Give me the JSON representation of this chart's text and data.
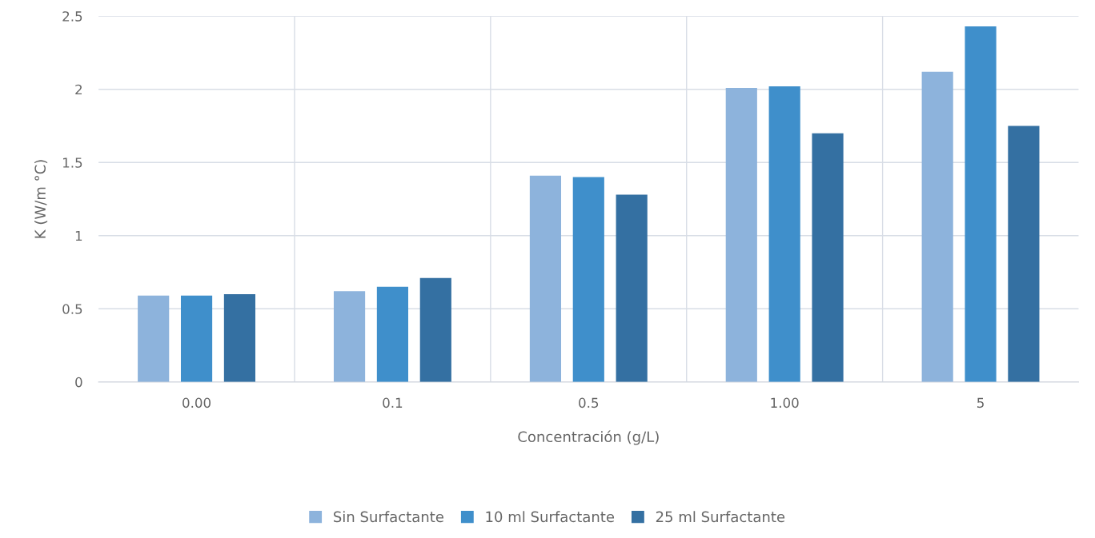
{
  "chart_data": {
    "type": "bar",
    "xlabel": "Concentración (g/L)",
    "ylabel": "K (W/m °C)",
    "categories": [
      "0.00",
      "0.1",
      "0.5",
      "1.00",
      "5"
    ],
    "series": [
      {
        "name": "Sin Surfactante",
        "color": "#8db3dc",
        "values": [
          0.59,
          0.62,
          1.41,
          2.01,
          2.12
        ]
      },
      {
        "name": "10 ml Surfactante",
        "color": "#3f8fcb",
        "values": [
          0.59,
          0.65,
          1.4,
          2.02,
          2.43
        ]
      },
      {
        "name": "25 ml Surfactante",
        "color": "#3470a2",
        "values": [
          0.6,
          0.71,
          1.28,
          1.7,
          1.75
        ]
      }
    ],
    "ylim": [
      0,
      2.5
    ],
    "yticks": [
      0,
      0.5,
      1,
      1.5,
      2,
      2.5
    ],
    "grid": true,
    "legend": "bottom"
  }
}
